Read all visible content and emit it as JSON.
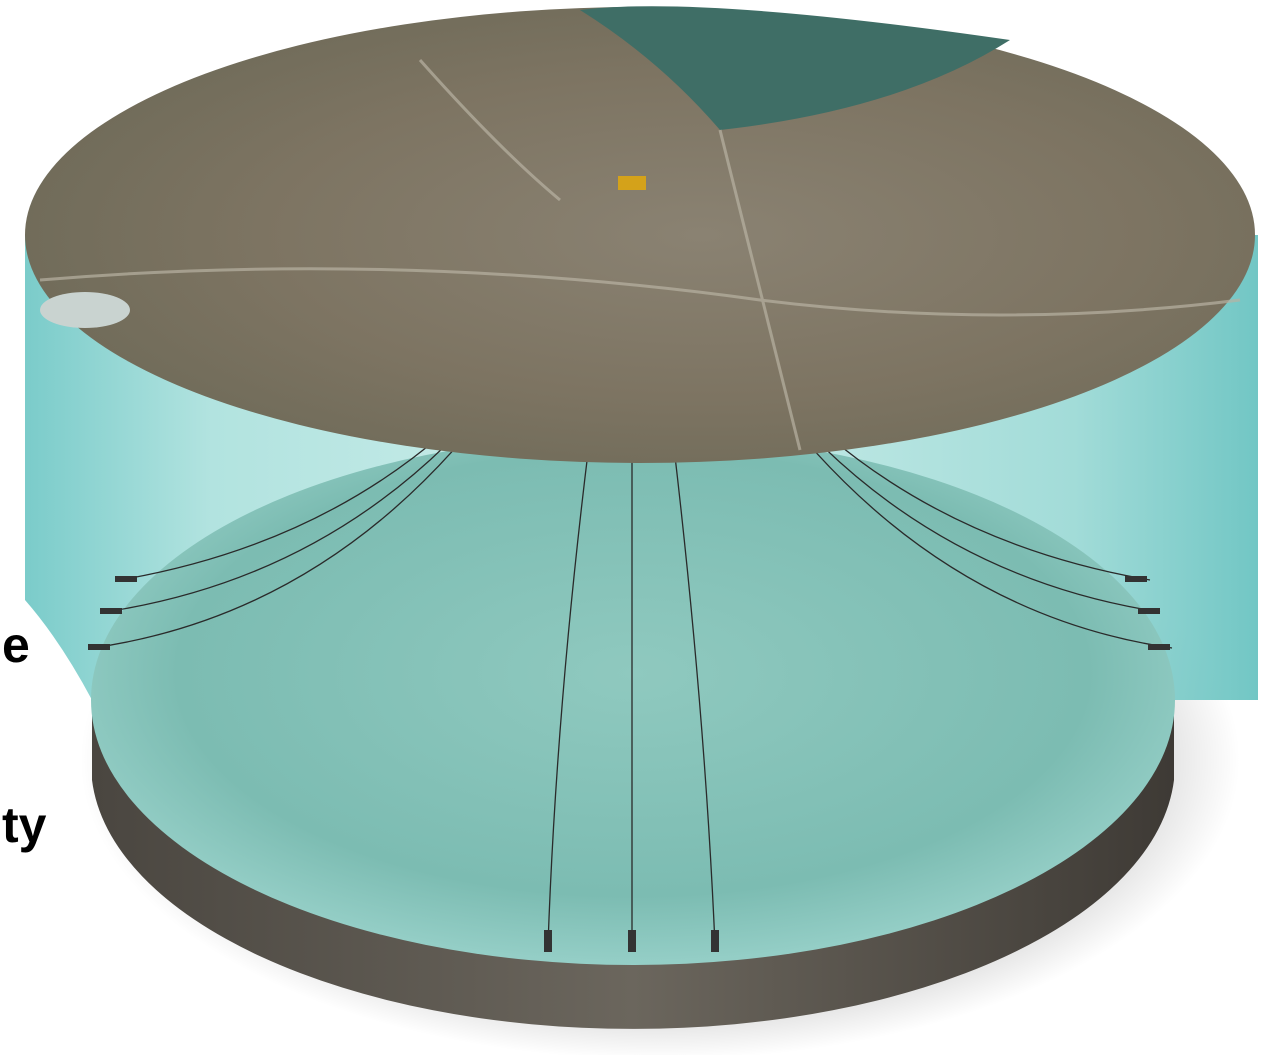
{
  "caption": {
    "line_1": "e",
    "line_2": "ty"
  }
}
